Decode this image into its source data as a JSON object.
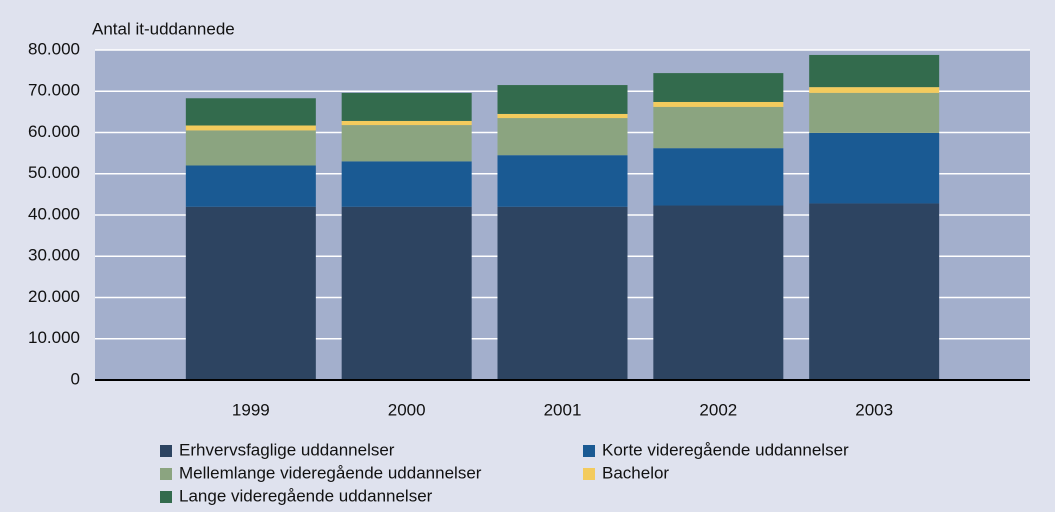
{
  "chart_data": {
    "type": "stacked_bar",
    "ylabel": "Antal it-uddannede",
    "categories": [
      "1999",
      "2000",
      "2001",
      "2002",
      "2003"
    ],
    "series": [
      {
        "name": "Erhvervsfaglige uddannelser",
        "color": "#2d4461",
        "values": [
          42000,
          42000,
          42000,
          42300,
          42800
        ]
      },
      {
        "name": "Korte videregående uddannelser",
        "color": "#1a5a93",
        "values": [
          10000,
          11000,
          12500,
          13900,
          17100
        ]
      },
      {
        "name": "Mellemlange videregående uddannelser",
        "color": "#8ba480",
        "values": [
          8500,
          8800,
          9000,
          10000,
          9700
        ]
      },
      {
        "name": "Bachelor",
        "color": "#f3cb5d",
        "values": [
          1200,
          1000,
          1000,
          1200,
          1400
        ]
      },
      {
        "name": "Lange videregående uddannelser",
        "color": "#336b4d",
        "values": [
          6600,
          6800,
          7000,
          7000,
          7800
        ]
      }
    ],
    "ylim": [
      0,
      80000
    ],
    "yticks": [
      0,
      {
        "value": 10000,
        "label": "10.000"
      },
      {
        "value": 20000,
        "label": "20.000"
      },
      {
        "value": 30000,
        "label": "30.000"
      },
      {
        "value": 40000,
        "label": "40.000"
      },
      {
        "value": 50000,
        "label": "50.000"
      },
      {
        "value": 60000,
        "label": "60.000"
      },
      {
        "value": 70000,
        "label": "70.000"
      },
      {
        "value": 80000,
        "label": "80.000"
      }
    ],
    "grid": true
  }
}
